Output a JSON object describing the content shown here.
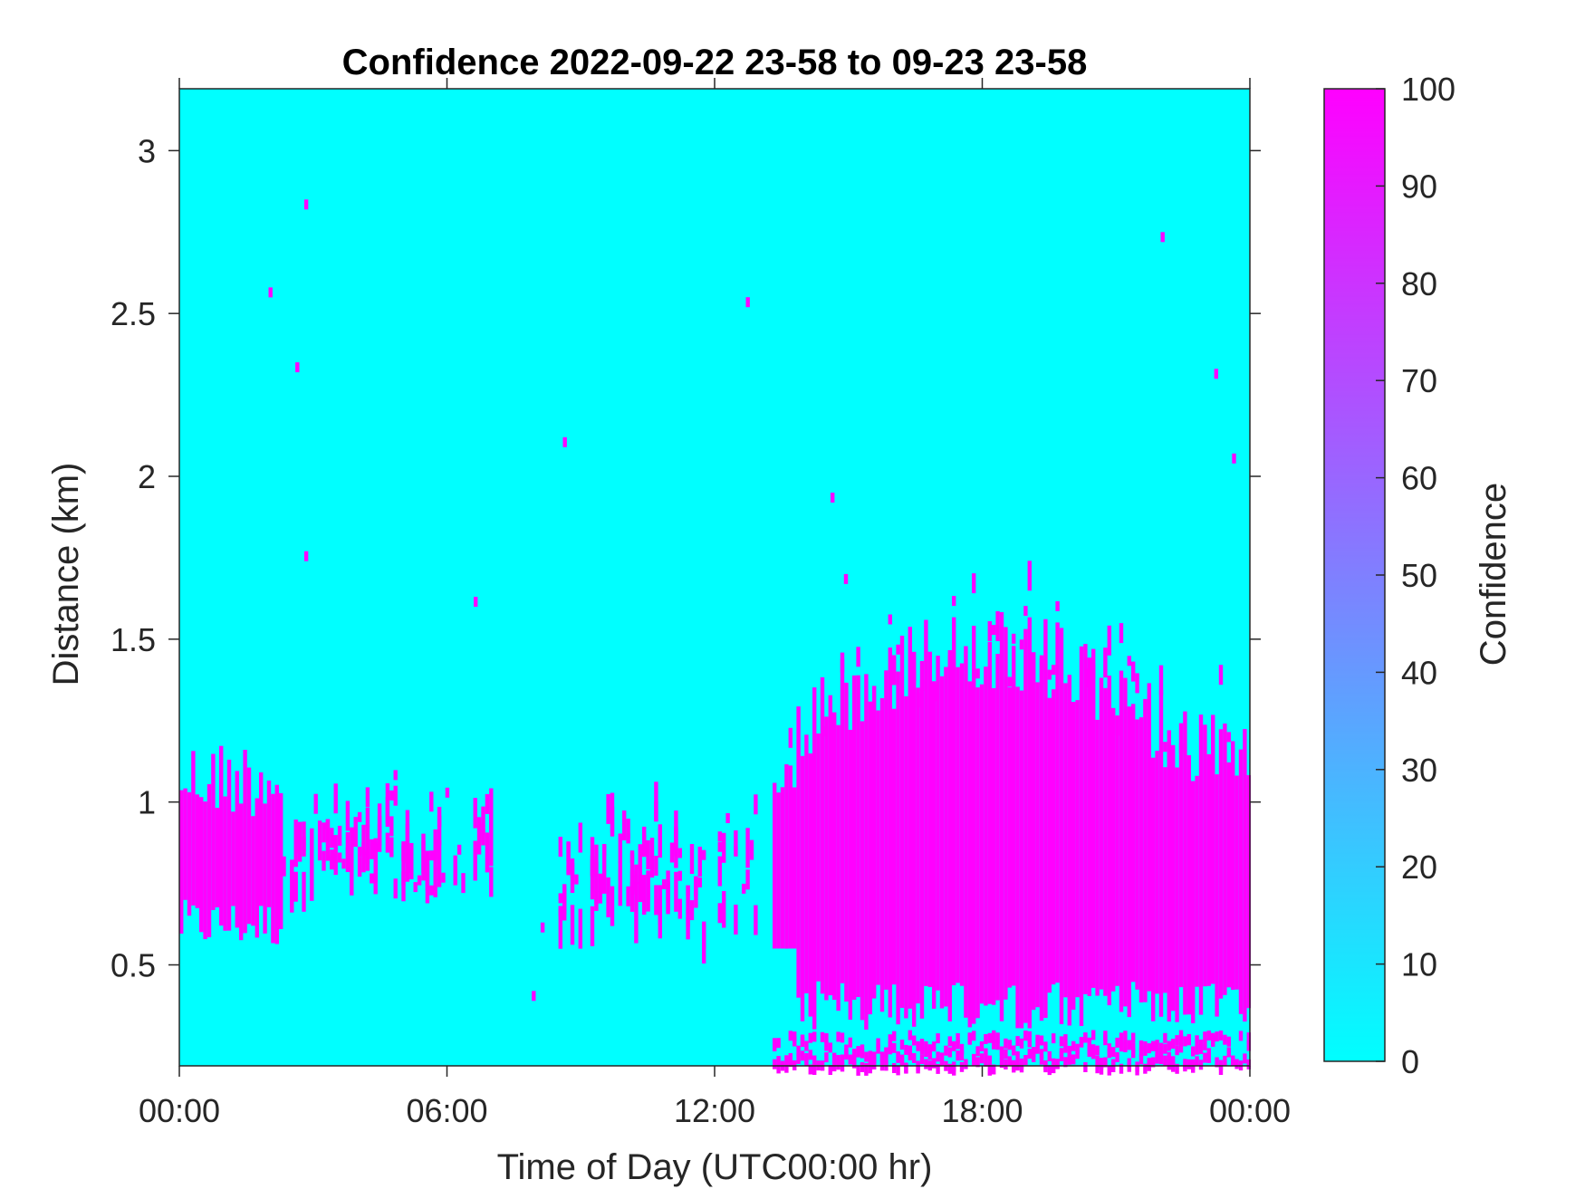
{
  "chart_data": {
    "type": "heatmap",
    "title": "Confidence 2022-09-22 23-58 to 09-23 23-58",
    "xlabel": "Time of Day (UTC00:00 hr)",
    "ylabel": "Distance (km)",
    "xlim_hours": [
      0,
      24
    ],
    "ylim": [
      0.19,
      3.19
    ],
    "xticks_hours": [
      0,
      6,
      12,
      18,
      24
    ],
    "xtick_labels": [
      "00:00",
      "06:00",
      "12:00",
      "18:00",
      "00:00"
    ],
    "yticks": [
      0.5,
      1,
      1.5,
      2,
      2.5,
      3
    ],
    "ytick_labels": [
      "0.5",
      "1",
      "1.5",
      "2",
      "2.5",
      "3"
    ],
    "colorbar": {
      "label": "Confidence",
      "range": [
        0,
        100
      ],
      "ticks": [
        0,
        10,
        20,
        30,
        40,
        50,
        60,
        70,
        80,
        90,
        100
      ],
      "tick_labels": [
        "0",
        "10",
        "20",
        "30",
        "40",
        "50",
        "60",
        "70",
        "80",
        "90",
        "100"
      ],
      "color_low": "#00ffff",
      "color_high": "#ff00ff"
    },
    "grid": false,
    "background_value": 0,
    "regions": [
      {
        "name": "early-layer",
        "t_start": 0.0,
        "t_end": 2.3,
        "d_low": 0.55,
        "d_high": 1.2,
        "value": 100
      },
      {
        "name": "scattered-morning",
        "t_start": 2.3,
        "t_end": 7.0,
        "d_low": 0.7,
        "d_high": 1.15,
        "value": 100,
        "sparse": true
      },
      {
        "name": "scattered-midday",
        "t_start": 8.5,
        "t_end": 12.9,
        "d_low": 0.6,
        "d_high": 1.1,
        "value": 100,
        "sparse": true
      },
      {
        "name": "afternoon-layer",
        "t_start": 13.3,
        "t_end": 24.0,
        "d_low": 0.3,
        "d_high": 1.5,
        "value": 100
      }
    ],
    "isolated_points": [
      {
        "t": 2.8,
        "d": 2.85
      },
      {
        "t": 2.0,
        "d": 2.58
      },
      {
        "t": 2.6,
        "d": 2.35
      },
      {
        "t": 2.8,
        "d": 1.77
      },
      {
        "t": 6.6,
        "d": 1.63
      },
      {
        "t": 8.6,
        "d": 2.12
      },
      {
        "t": 12.7,
        "d": 2.55
      },
      {
        "t": 14.6,
        "d": 1.95
      },
      {
        "t": 14.9,
        "d": 1.7
      },
      {
        "t": 22.0,
        "d": 2.75
      },
      {
        "t": 23.2,
        "d": 2.33
      },
      {
        "t": 23.6,
        "d": 2.07
      },
      {
        "t": 7.9,
        "d": 0.42
      },
      {
        "t": 8.1,
        "d": 0.63
      }
    ]
  }
}
